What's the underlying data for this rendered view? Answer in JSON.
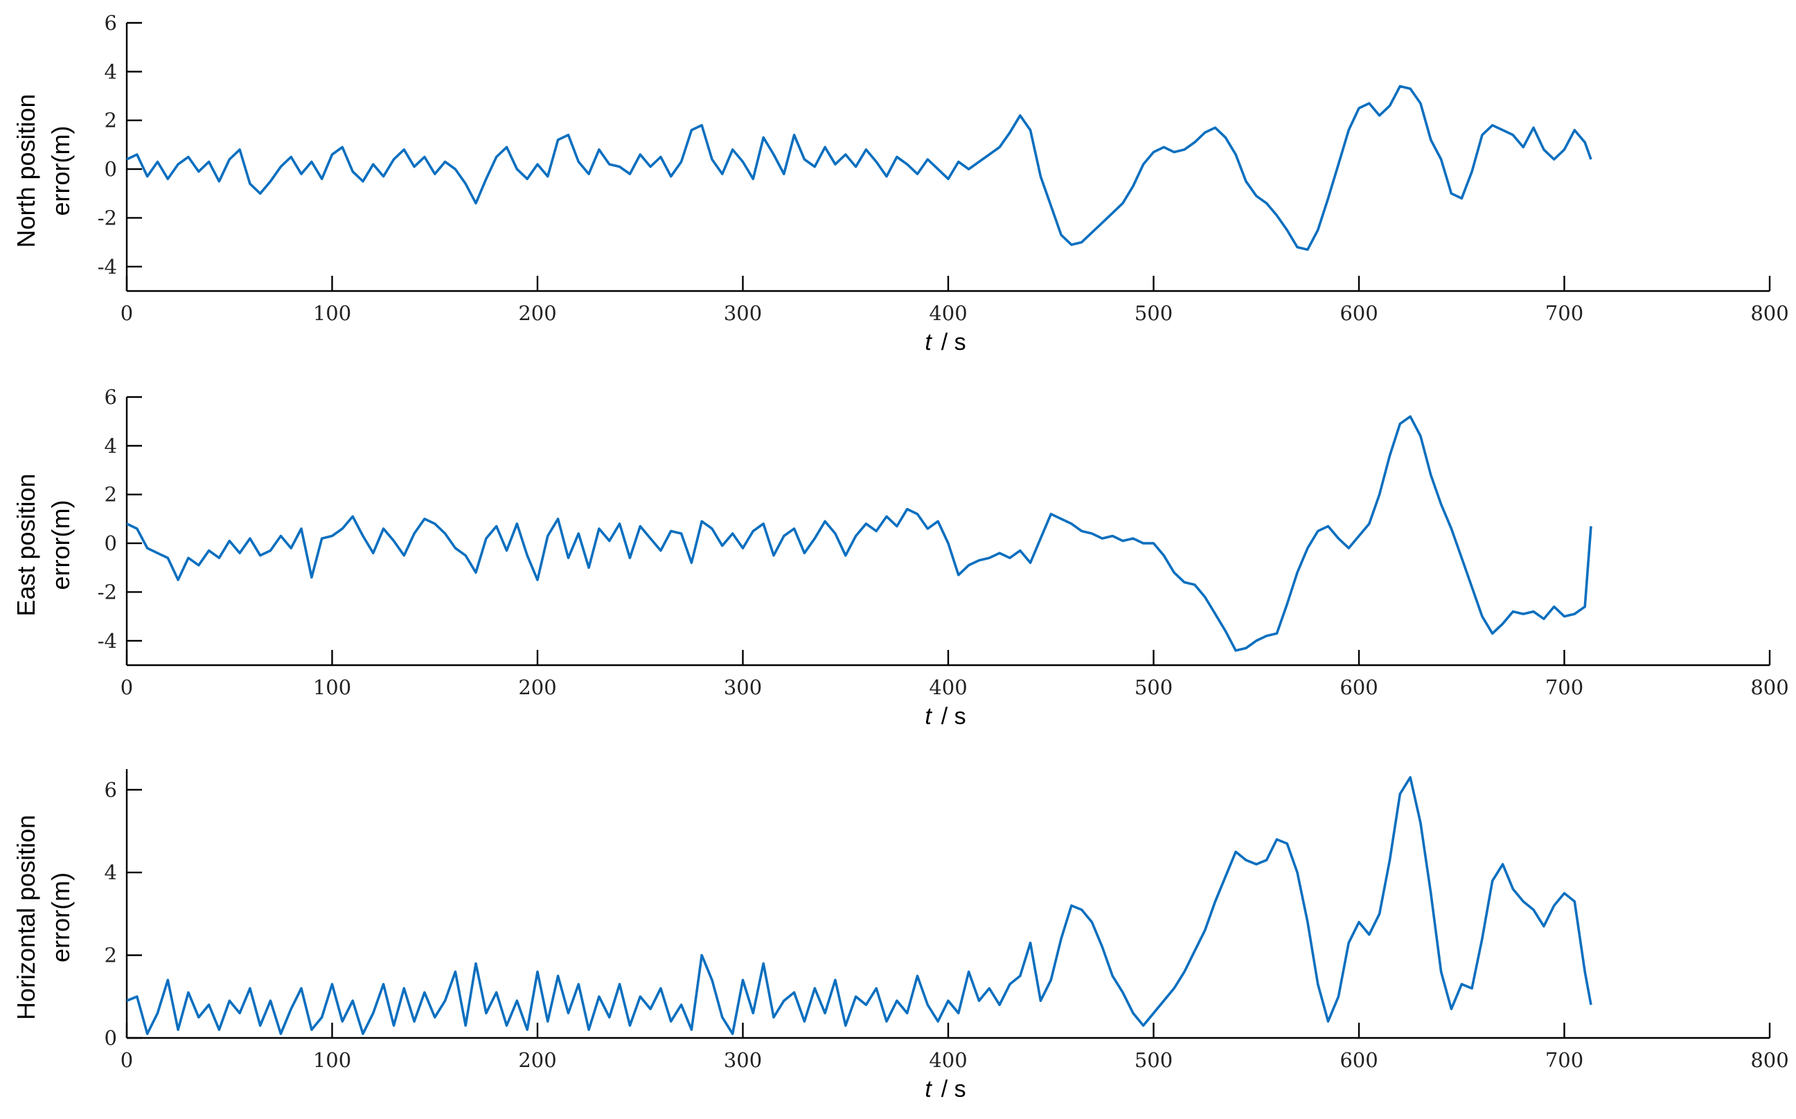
{
  "chart_data": [
    {
      "type": "line",
      "ylabel": [
        "North position",
        "error(m)"
      ],
      "xlabel": {
        "var": "t",
        "unit": "/ s"
      },
      "xlim": [
        0,
        800
      ],
      "ylim": [
        -5,
        6
      ],
      "xticks": [
        0,
        100,
        200,
        300,
        400,
        500,
        600,
        700,
        800
      ],
      "yticks": [
        -4,
        -2,
        0,
        2,
        4,
        6
      ],
      "grid": false,
      "series": [
        {
          "color": "#0b6fbf",
          "x": [
            0,
            5,
            10,
            15,
            20,
            25,
            30,
            35,
            40,
            45,
            50,
            55,
            60,
            65,
            70,
            75,
            80,
            85,
            90,
            95,
            100,
            105,
            110,
            115,
            120,
            125,
            130,
            135,
            140,
            145,
            150,
            155,
            160,
            165,
            170,
            175,
            180,
            185,
            190,
            195,
            200,
            205,
            210,
            215,
            220,
            225,
            230,
            235,
            240,
            245,
            250,
            255,
            260,
            265,
            270,
            275,
            280,
            285,
            290,
            295,
            300,
            305,
            310,
            315,
            320,
            325,
            330,
            335,
            340,
            345,
            350,
            355,
            360,
            365,
            370,
            375,
            380,
            385,
            390,
            395,
            400,
            405,
            410,
            415,
            420,
            425,
            430,
            435,
            440,
            445,
            450,
            455,
            460,
            465,
            470,
            475,
            480,
            485,
            490,
            495,
            500,
            505,
            510,
            515,
            520,
            525,
            530,
            535,
            540,
            545,
            550,
            555,
            560,
            565,
            570,
            575,
            580,
            585,
            590,
            595,
            600,
            605,
            610,
            615,
            620,
            625,
            630,
            635,
            640,
            645,
            650,
            655,
            660,
            665,
            670,
            675,
            680,
            685,
            690,
            695,
            700,
            705,
            710,
            713
          ],
          "values": [
            0.4,
            0.6,
            -0.3,
            0.3,
            -0.4,
            0.2,
            0.5,
            -0.1,
            0.3,
            -0.5,
            0.4,
            0.8,
            -0.6,
            -1.0,
            -0.5,
            0.1,
            0.5,
            -0.2,
            0.3,
            -0.4,
            0.6,
            0.9,
            -0.1,
            -0.5,
            0.2,
            -0.3,
            0.4,
            0.8,
            0.1,
            0.5,
            -0.2,
            0.3,
            0.0,
            -0.6,
            -1.4,
            -0.4,
            0.5,
            0.9,
            0.0,
            -0.4,
            0.2,
            -0.3,
            1.2,
            1.4,
            0.3,
            -0.2,
            0.8,
            0.2,
            0.1,
            -0.2,
            0.6,
            0.1,
            0.5,
            -0.3,
            0.3,
            1.6,
            1.8,
            0.4,
            -0.2,
            0.8,
            0.3,
            -0.4,
            1.3,
            0.6,
            -0.2,
            1.4,
            0.4,
            0.1,
            0.9,
            0.2,
            0.6,
            0.1,
            0.8,
            0.3,
            -0.3,
            0.5,
            0.2,
            -0.2,
            0.4,
            0.0,
            -0.4,
            0.3,
            0.0,
            0.3,
            0.6,
            0.9,
            1.5,
            2.2,
            1.6,
            -0.3,
            -1.5,
            -2.7,
            -3.1,
            -3.0,
            -2.6,
            -2.2,
            -1.8,
            -1.4,
            -0.7,
            0.2,
            0.7,
            0.9,
            0.7,
            0.8,
            1.1,
            1.5,
            1.7,
            1.3,
            0.6,
            -0.5,
            -1.1,
            -1.4,
            -1.9,
            -2.5,
            -3.2,
            -3.3,
            -2.5,
            -1.2,
            0.2,
            1.6,
            2.5,
            2.7,
            2.2,
            2.6,
            3.4,
            3.3,
            2.7,
            1.2,
            0.4,
            -1.0,
            -1.2,
            -0.1,
            1.4,
            1.8,
            1.6,
            1.4,
            0.9,
            1.7,
            0.8,
            0.4,
            0.8,
            1.6,
            1.1,
            0.4
          ]
        }
      ]
    },
    {
      "type": "line",
      "ylabel": [
        "East position",
        "error(m)"
      ],
      "xlabel": {
        "var": "t",
        "unit": "/ s"
      },
      "xlim": [
        0,
        800
      ],
      "ylim": [
        -5,
        6
      ],
      "xticks": [
        0,
        100,
        200,
        300,
        400,
        500,
        600,
        700,
        800
      ],
      "yticks": [
        -4,
        -2,
        0,
        2,
        4,
        6
      ],
      "grid": false,
      "series": [
        {
          "color": "#0b6fbf",
          "x": [
            0,
            5,
            10,
            15,
            20,
            25,
            30,
            35,
            40,
            45,
            50,
            55,
            60,
            65,
            70,
            75,
            80,
            85,
            90,
            95,
            100,
            105,
            110,
            115,
            120,
            125,
            130,
            135,
            140,
            145,
            150,
            155,
            160,
            165,
            170,
            175,
            180,
            185,
            190,
            195,
            200,
            205,
            210,
            215,
            220,
            225,
            230,
            235,
            240,
            245,
            250,
            255,
            260,
            265,
            270,
            275,
            280,
            285,
            290,
            295,
            300,
            305,
            310,
            315,
            320,
            325,
            330,
            335,
            340,
            345,
            350,
            355,
            360,
            365,
            370,
            375,
            380,
            385,
            390,
            395,
            400,
            405,
            410,
            415,
            420,
            425,
            430,
            435,
            440,
            445,
            450,
            455,
            460,
            465,
            470,
            475,
            480,
            485,
            490,
            495,
            500,
            505,
            510,
            515,
            520,
            525,
            530,
            535,
            540,
            545,
            550,
            555,
            560,
            565,
            570,
            575,
            580,
            585,
            590,
            595,
            600,
            605,
            610,
            615,
            620,
            625,
            630,
            635,
            640,
            645,
            650,
            655,
            660,
            665,
            670,
            675,
            680,
            685,
            690,
            695,
            700,
            705,
            710,
            713
          ],
          "values": [
            0.8,
            0.6,
            -0.2,
            -0.4,
            -0.6,
            -1.5,
            -0.6,
            -0.9,
            -0.3,
            -0.6,
            0.1,
            -0.4,
            0.2,
            -0.5,
            -0.3,
            0.3,
            -0.2,
            0.6,
            -1.4,
            0.2,
            0.3,
            0.6,
            1.1,
            0.3,
            -0.4,
            0.6,
            0.1,
            -0.5,
            0.4,
            1.0,
            0.8,
            0.4,
            -0.2,
            -0.5,
            -1.2,
            0.2,
            0.7,
            -0.3,
            0.8,
            -0.5,
            -1.5,
            0.3,
            1.0,
            -0.6,
            0.4,
            -1.0,
            0.6,
            0.1,
            0.8,
            -0.6,
            0.7,
            0.2,
            -0.3,
            0.5,
            0.4,
            -0.8,
            0.9,
            0.6,
            -0.1,
            0.4,
            -0.2,
            0.5,
            0.8,
            -0.5,
            0.3,
            0.6,
            -0.4,
            0.2,
            0.9,
            0.4,
            -0.5,
            0.3,
            0.8,
            0.5,
            1.1,
            0.7,
            1.4,
            1.2,
            0.6,
            0.9,
            0.0,
            -1.3,
            -0.9,
            -0.7,
            -0.6,
            -0.4,
            -0.6,
            -0.3,
            -0.8,
            0.2,
            1.2,
            1.0,
            0.8,
            0.5,
            0.4,
            0.2,
            0.3,
            0.1,
            0.2,
            0.0,
            0.0,
            -0.5,
            -1.2,
            -1.6,
            -1.7,
            -2.2,
            -2.9,
            -3.6,
            -4.4,
            -4.3,
            -4.0,
            -3.8,
            -3.7,
            -2.5,
            -1.2,
            -0.2,
            0.5,
            0.7,
            0.2,
            -0.2,
            0.3,
            0.8,
            2.0,
            3.6,
            4.9,
            5.2,
            4.4,
            2.8,
            1.6,
            0.6,
            -0.6,
            -1.8,
            -3.0,
            -3.7,
            -3.3,
            -2.8,
            -2.9,
            -2.8,
            -3.1,
            -2.6,
            -3.0,
            -2.9,
            -2.6,
            0.7
          ]
        }
      ]
    },
    {
      "type": "line",
      "ylabel": [
        "Horizontal position",
        "error(m)"
      ],
      "xlabel": {
        "var": "t",
        "unit": "/ s"
      },
      "xlim": [
        0,
        800
      ],
      "ylim": [
        0,
        6.5
      ],
      "xticks": [
        0,
        100,
        200,
        300,
        400,
        500,
        600,
        700,
        800
      ],
      "yticks": [
        0,
        2,
        4,
        6
      ],
      "grid": false,
      "series": [
        {
          "color": "#0b6fbf",
          "x": [
            0,
            5,
            10,
            15,
            20,
            25,
            30,
            35,
            40,
            45,
            50,
            55,
            60,
            65,
            70,
            75,
            80,
            85,
            90,
            95,
            100,
            105,
            110,
            115,
            120,
            125,
            130,
            135,
            140,
            145,
            150,
            155,
            160,
            165,
            170,
            175,
            180,
            185,
            190,
            195,
            200,
            205,
            210,
            215,
            220,
            225,
            230,
            235,
            240,
            245,
            250,
            255,
            260,
            265,
            270,
            275,
            280,
            285,
            290,
            295,
            300,
            305,
            310,
            315,
            320,
            325,
            330,
            335,
            340,
            345,
            350,
            355,
            360,
            365,
            370,
            375,
            380,
            385,
            390,
            395,
            400,
            405,
            410,
            415,
            420,
            425,
            430,
            435,
            440,
            445,
            450,
            455,
            460,
            465,
            470,
            475,
            480,
            485,
            490,
            495,
            500,
            505,
            510,
            515,
            520,
            525,
            530,
            535,
            540,
            545,
            550,
            555,
            560,
            565,
            570,
            575,
            580,
            585,
            590,
            595,
            600,
            605,
            610,
            615,
            620,
            625,
            630,
            635,
            640,
            645,
            650,
            655,
            660,
            665,
            670,
            675,
            680,
            685,
            690,
            695,
            700,
            705,
            710,
            713
          ],
          "values": [
            0.9,
            1.0,
            0.1,
            0.6,
            1.4,
            0.2,
            1.1,
            0.5,
            0.8,
            0.2,
            0.9,
            0.6,
            1.2,
            0.3,
            0.9,
            0.1,
            0.7,
            1.2,
            0.2,
            0.5,
            1.3,
            0.4,
            0.9,
            0.1,
            0.6,
            1.3,
            0.3,
            1.2,
            0.4,
            1.1,
            0.5,
            0.9,
            1.6,
            0.3,
            1.8,
            0.6,
            1.1,
            0.3,
            0.9,
            0.2,
            1.6,
            0.4,
            1.5,
            0.6,
            1.3,
            0.2,
            1.0,
            0.5,
            1.3,
            0.3,
            1.0,
            0.7,
            1.2,
            0.4,
            0.8,
            0.2,
            2.0,
            1.4,
            0.5,
            0.1,
            1.4,
            0.6,
            1.8,
            0.5,
            0.9,
            1.1,
            0.4,
            1.2,
            0.6,
            1.4,
            0.3,
            1.0,
            0.8,
            1.2,
            0.4,
            0.9,
            0.6,
            1.5,
            0.8,
            0.4,
            0.9,
            0.6,
            1.6,
            0.9,
            1.2,
            0.8,
            1.3,
            1.5,
            2.3,
            0.9,
            1.4,
            2.4,
            3.2,
            3.1,
            2.8,
            2.2,
            1.5,
            1.1,
            0.6,
            0.3,
            0.6,
            0.9,
            1.2,
            1.6,
            2.1,
            2.6,
            3.3,
            3.9,
            4.5,
            4.3,
            4.2,
            4.3,
            4.8,
            4.7,
            4.0,
            2.8,
            1.3,
            0.4,
            1.0,
            2.3,
            2.8,
            2.5,
            3.0,
            4.3,
            5.9,
            6.3,
            5.2,
            3.5,
            1.6,
            0.7,
            1.3,
            1.2,
            2.4,
            3.8,
            4.2,
            3.6,
            3.3,
            3.1,
            2.7,
            3.2,
            3.5,
            3.3,
            1.6,
            0.8
          ]
        }
      ]
    }
  ]
}
